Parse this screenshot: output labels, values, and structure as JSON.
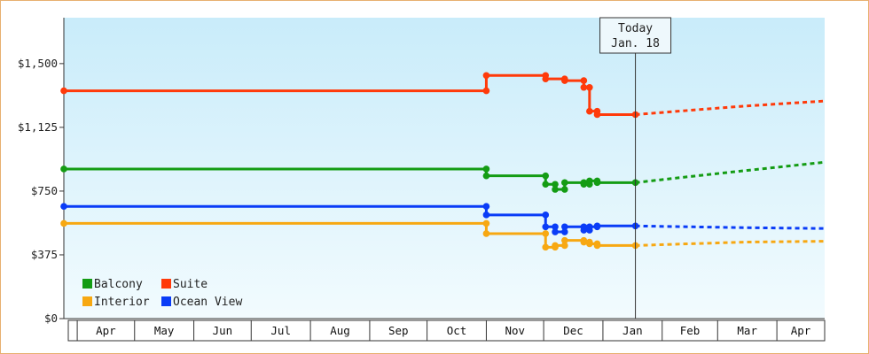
{
  "chart_data": {
    "type": "line",
    "title": "",
    "xlabel": "",
    "ylabel": "",
    "y_ticks": [
      "$0",
      "$375",
      "$750",
      "$1,125",
      "$1,500"
    ],
    "y_tick_values": [
      0,
      375,
      750,
      1125,
      1500
    ],
    "ylim": [
      0,
      1770
    ],
    "x_ticks": [
      "Apr",
      "May",
      "Jun",
      "Jul",
      "Aug",
      "Sep",
      "Oct",
      "Nov",
      "Dec",
      "Jan",
      "Feb",
      "Mar",
      "Apr"
    ],
    "x_tick_dates": [
      "2015-04-01",
      "2015-05-01",
      "2015-06-01",
      "2015-07-01",
      "2015-08-01",
      "2015-09-01",
      "2015-10-01",
      "2015-11-01",
      "2015-12-01",
      "2016-01-01",
      "2016-02-01",
      "2016-03-01",
      "2016-04-01"
    ],
    "xlim": [
      "2015-03-25",
      "2016-04-26"
    ],
    "today": {
      "line1": "Today",
      "line2": "Jan. 18",
      "date": "2016-01-18"
    },
    "legend": {
      "placement": "bottom-left"
    },
    "series": [
      {
        "name": "Balcony",
        "color": "#149c14",
        "points": [
          [
            "2015-03-25",
            880
          ],
          [
            "2015-11-01",
            880
          ],
          [
            "2015-11-01",
            840
          ],
          [
            "2015-12-02",
            840
          ],
          [
            "2015-12-02",
            790
          ],
          [
            "2015-12-07",
            790
          ],
          [
            "2015-12-07",
            760
          ],
          [
            "2015-12-12",
            760
          ],
          [
            "2015-12-12",
            800
          ],
          [
            "2015-12-22",
            800
          ],
          [
            "2015-12-22",
            790
          ],
          [
            "2015-12-25",
            790
          ],
          [
            "2015-12-25",
            810
          ],
          [
            "2015-12-29",
            810
          ],
          [
            "2015-12-29",
            800
          ]
        ],
        "forecast": [
          [
            "2016-01-18",
            800
          ],
          [
            "2016-02-15",
            835
          ],
          [
            "2016-03-15",
            870
          ],
          [
            "2016-04-26",
            920
          ]
        ]
      },
      {
        "name": "Suite",
        "color": "#ff3a0a",
        "points": [
          [
            "2015-03-25",
            1340
          ],
          [
            "2015-11-01",
            1340
          ],
          [
            "2015-11-01",
            1430
          ],
          [
            "2015-12-02",
            1430
          ],
          [
            "2015-12-02",
            1410
          ],
          [
            "2015-12-12",
            1410
          ],
          [
            "2015-12-12",
            1400
          ],
          [
            "2015-12-22",
            1400
          ],
          [
            "2015-12-22",
            1360
          ],
          [
            "2015-12-25",
            1360
          ],
          [
            "2015-12-25",
            1220
          ],
          [
            "2015-12-29",
            1220
          ],
          [
            "2015-12-29",
            1200
          ]
        ],
        "forecast": [
          [
            "2016-01-18",
            1200
          ],
          [
            "2016-02-15",
            1225
          ],
          [
            "2016-03-15",
            1250
          ],
          [
            "2016-04-26",
            1280
          ]
        ]
      },
      {
        "name": "Interior",
        "color": "#f7a812",
        "points": [
          [
            "2015-03-25",
            560
          ],
          [
            "2015-11-01",
            560
          ],
          [
            "2015-11-01",
            500
          ],
          [
            "2015-12-02",
            500
          ],
          [
            "2015-12-02",
            420
          ],
          [
            "2015-12-07",
            420
          ],
          [
            "2015-12-07",
            430
          ],
          [
            "2015-12-12",
            430
          ],
          [
            "2015-12-12",
            460
          ],
          [
            "2015-12-22",
            460
          ],
          [
            "2015-12-22",
            450
          ],
          [
            "2015-12-25",
            450
          ],
          [
            "2015-12-25",
            440
          ],
          [
            "2015-12-29",
            440
          ],
          [
            "2015-12-29",
            430
          ]
        ],
        "forecast": [
          [
            "2016-01-18",
            430
          ],
          [
            "2016-02-15",
            440
          ],
          [
            "2016-03-15",
            450
          ],
          [
            "2016-04-26",
            455
          ]
        ]
      },
      {
        "name": "Ocean View",
        "color": "#0a3cf7",
        "points": [
          [
            "2015-03-25",
            660
          ],
          [
            "2015-11-01",
            660
          ],
          [
            "2015-11-01",
            610
          ],
          [
            "2015-12-02",
            610
          ],
          [
            "2015-12-02",
            540
          ],
          [
            "2015-12-07",
            540
          ],
          [
            "2015-12-07",
            510
          ],
          [
            "2015-12-12",
            510
          ],
          [
            "2015-12-12",
            540
          ],
          [
            "2015-12-22",
            540
          ],
          [
            "2015-12-22",
            520
          ],
          [
            "2015-12-25",
            520
          ],
          [
            "2015-12-25",
            540
          ],
          [
            "2015-12-29",
            540
          ],
          [
            "2015-12-29",
            545
          ]
        ],
        "forecast": [
          [
            "2016-01-18",
            545
          ],
          [
            "2016-02-15",
            540
          ],
          [
            "2016-03-15",
            535
          ],
          [
            "2016-04-26",
            530
          ]
        ]
      }
    ]
  }
}
